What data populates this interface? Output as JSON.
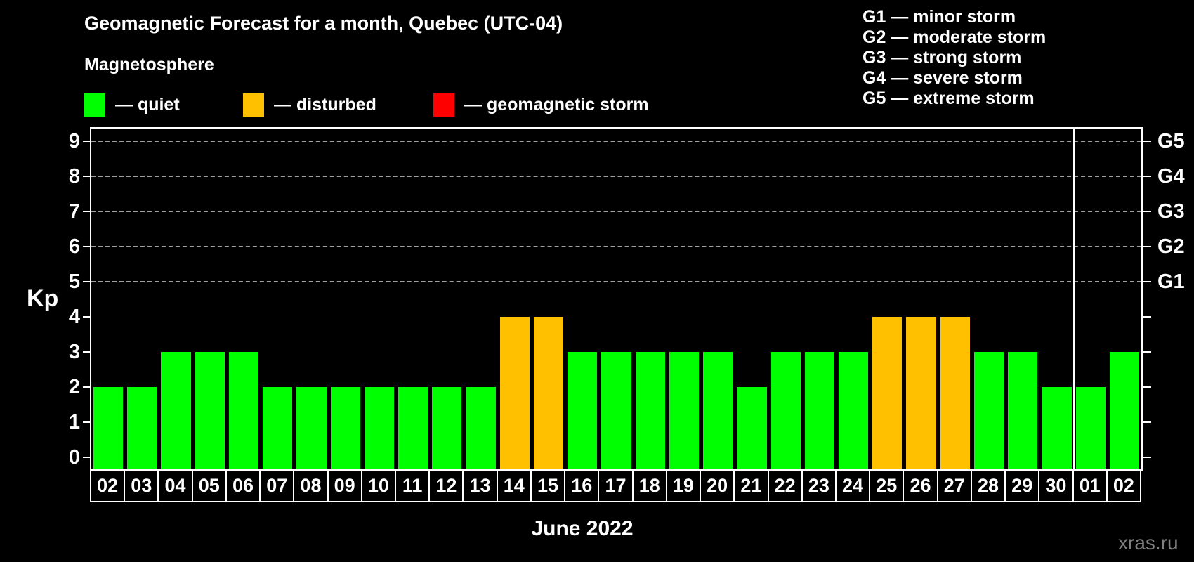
{
  "header": {
    "title": "Geomagnetic Forecast for a month, Quebec (UTC-04)",
    "subtitle": "Magnetosphere"
  },
  "legend": {
    "items": [
      {
        "name": "quiet",
        "label": "— quiet",
        "color": "#00ff00"
      },
      {
        "name": "disturbed",
        "label": "— disturbed",
        "color": "#ffc000"
      },
      {
        "name": "geomagnetic-storm",
        "label": "— geomagnetic storm",
        "color": "#ff0000"
      }
    ]
  },
  "g_scale_legend": [
    "G1 — minor storm",
    "G2 — moderate storm",
    "G3 — strong storm",
    "G4 — severe storm",
    "G5 — extreme storm"
  ],
  "axes": {
    "y_left_label": "Kp",
    "y_ticks": [
      0,
      1,
      2,
      3,
      4,
      5,
      6,
      7,
      8,
      9
    ],
    "y_right_labels": [
      {
        "kp": 5,
        "label": "G1"
      },
      {
        "kp": 6,
        "label": "G2"
      },
      {
        "kp": 7,
        "label": "G3"
      },
      {
        "kp": 8,
        "label": "G4"
      },
      {
        "kp": 9,
        "label": "G5"
      }
    ],
    "x_label": "June 2022"
  },
  "watermark": "xras.ru",
  "colors": {
    "background": "#000000",
    "quiet": "#00ff00",
    "disturbed": "#ffc000",
    "storm": "#ff0000",
    "axis": "#ffffff",
    "gridline": "#a0a0a0",
    "watermark": "#808080"
  },
  "chart_data": {
    "type": "bar",
    "title": "Geomagnetic Forecast for a month, Quebec (UTC-04)",
    "xlabel": "June 2022",
    "ylabel": "Kp",
    "ylim": [
      0,
      9
    ],
    "gridlines_at_kp": [
      5,
      6,
      7,
      8,
      9
    ],
    "g_levels": {
      "G1": 5,
      "G2": 6,
      "G3": 7,
      "G4": 8,
      "G5": 9
    },
    "legend_position": "top",
    "month_divider_after_index": 28,
    "categories": [
      "02",
      "03",
      "04",
      "05",
      "06",
      "07",
      "08",
      "09",
      "10",
      "11",
      "12",
      "13",
      "14",
      "15",
      "16",
      "17",
      "18",
      "19",
      "20",
      "21",
      "22",
      "23",
      "24",
      "25",
      "26",
      "27",
      "28",
      "29",
      "30",
      "01",
      "02"
    ],
    "values": [
      2,
      2,
      3,
      3,
      3,
      2,
      2,
      2,
      2,
      2,
      2,
      2,
      4,
      4,
      3,
      3,
      3,
      3,
      3,
      2,
      3,
      3,
      3,
      4,
      4,
      4,
      3,
      3,
      2,
      2,
      3
    ],
    "statuses": [
      "quiet",
      "quiet",
      "quiet",
      "quiet",
      "quiet",
      "quiet",
      "quiet",
      "quiet",
      "quiet",
      "quiet",
      "quiet",
      "quiet",
      "disturbed",
      "disturbed",
      "quiet",
      "quiet",
      "quiet",
      "quiet",
      "quiet",
      "quiet",
      "quiet",
      "quiet",
      "quiet",
      "disturbed",
      "disturbed",
      "disturbed",
      "quiet",
      "quiet",
      "quiet",
      "quiet",
      "quiet"
    ]
  }
}
